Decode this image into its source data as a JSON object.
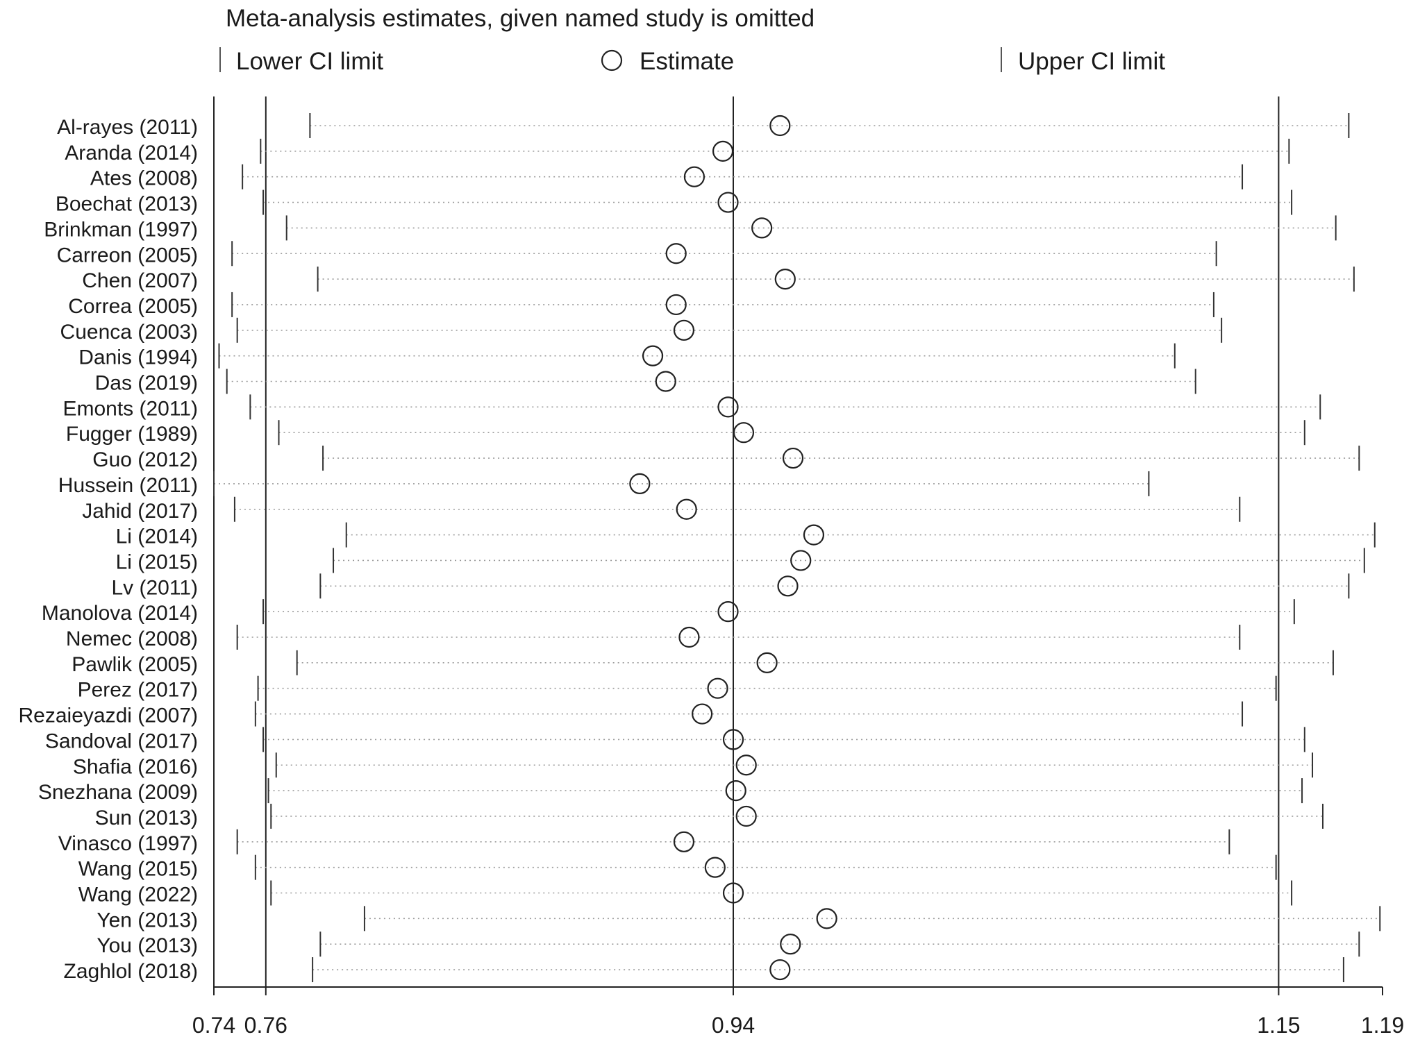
{
  "chart_data": {
    "type": "scatter",
    "title": "Meta-analysis estimates, given named study is omitted",
    "legend": {
      "position": "top",
      "items": [
        {
          "name": "Lower CI limit",
          "marker": "vertical-tick"
        },
        {
          "name": "Estimate",
          "marker": "open-circle"
        },
        {
          "name": "Upper CI limit",
          "marker": "vertical-tick"
        }
      ]
    },
    "x_ticks": [
      "0.74",
      "0.76",
      "0.94",
      "1.15",
      "1.19"
    ],
    "x_tick_values": [
      0.74,
      0.76,
      0.94,
      1.15,
      1.19
    ],
    "xlim": [
      0.74,
      1.19
    ],
    "reference_lines": [
      0.76,
      0.94,
      1.15
    ],
    "xlabel": "",
    "ylabel": "",
    "studies": [
      {
        "name": "Al-rayes (2011)",
        "lower": 0.777,
        "estimate": 0.958,
        "upper": 1.177
      },
      {
        "name": "Aranda (2014)",
        "lower": 0.758,
        "estimate": 0.936,
        "upper": 1.154
      },
      {
        "name": "Ates (2008)",
        "lower": 0.751,
        "estimate": 0.925,
        "upper": 1.136
      },
      {
        "name": "Boechat (2013)",
        "lower": 0.759,
        "estimate": 0.938,
        "upper": 1.155
      },
      {
        "name": "Brinkman (1997)",
        "lower": 0.768,
        "estimate": 0.951,
        "upper": 1.172
      },
      {
        "name": "Carreon (2005)",
        "lower": 0.747,
        "estimate": 0.918,
        "upper": 1.126
      },
      {
        "name": "Chen (2007)",
        "lower": 0.78,
        "estimate": 0.96,
        "upper": 1.179
      },
      {
        "name": "Correa (2005)",
        "lower": 0.747,
        "estimate": 0.918,
        "upper": 1.125
      },
      {
        "name": "Cuenca (2003)",
        "lower": 0.749,
        "estimate": 0.921,
        "upper": 1.128
      },
      {
        "name": "Danis (1994)",
        "lower": 0.742,
        "estimate": 0.909,
        "upper": 1.11
      },
      {
        "name": "Das (2019)",
        "lower": 0.745,
        "estimate": 0.914,
        "upper": 1.118
      },
      {
        "name": "Emonts (2011)",
        "lower": 0.754,
        "estimate": 0.938,
        "upper": 1.166
      },
      {
        "name": "Fugger (1989)",
        "lower": 0.765,
        "estimate": 0.944,
        "upper": 1.16
      },
      {
        "name": "Guo (2012)",
        "lower": 0.782,
        "estimate": 0.963,
        "upper": 1.181
      },
      {
        "name": "Hussein (2011)",
        "lower": 0.74,
        "estimate": 0.904,
        "upper": 1.1
      },
      {
        "name": "Jahid (2017)",
        "lower": 0.748,
        "estimate": 0.922,
        "upper": 1.135
      },
      {
        "name": "Li (2014)",
        "lower": 0.791,
        "estimate": 0.971,
        "upper": 1.187
      },
      {
        "name": "Li (2015)",
        "lower": 0.786,
        "estimate": 0.966,
        "upper": 1.183
      },
      {
        "name": "Lv (2011)",
        "lower": 0.781,
        "estimate": 0.961,
        "upper": 1.177
      },
      {
        "name": "Manolova (2014)",
        "lower": 0.759,
        "estimate": 0.938,
        "upper": 1.156
      },
      {
        "name": "Nemec (2008)",
        "lower": 0.749,
        "estimate": 0.923,
        "upper": 1.135
      },
      {
        "name": "Pawlik (2005)",
        "lower": 0.772,
        "estimate": 0.953,
        "upper": 1.171
      },
      {
        "name": "Perez (2017)",
        "lower": 0.757,
        "estimate": 0.934,
        "upper": 1.149
      },
      {
        "name": "Rezaieyazdi (2007)",
        "lower": 0.756,
        "estimate": 0.928,
        "upper": 1.136
      },
      {
        "name": "Sandoval (2017)",
        "lower": 0.759,
        "estimate": 0.94,
        "upper": 1.16
      },
      {
        "name": "Shafia (2016)",
        "lower": 0.764,
        "estimate": 0.945,
        "upper": 1.163
      },
      {
        "name": "Snezhana (2009)",
        "lower": 0.761,
        "estimate": 0.941,
        "upper": 1.159
      },
      {
        "name": "Sun (2013)",
        "lower": 0.762,
        "estimate": 0.945,
        "upper": 1.167
      },
      {
        "name": "Vinasco (1997)",
        "lower": 0.749,
        "estimate": 0.921,
        "upper": 1.131
      },
      {
        "name": "Wang (2015)",
        "lower": 0.756,
        "estimate": 0.933,
        "upper": 1.149
      },
      {
        "name": "Wang (2022)",
        "lower": 0.762,
        "estimate": 0.94,
        "upper": 1.155
      },
      {
        "name": "Yen (2013)",
        "lower": 0.798,
        "estimate": 0.976,
        "upper": 1.189
      },
      {
        "name": "You (2013)",
        "lower": 0.781,
        "estimate": 0.962,
        "upper": 1.181
      },
      {
        "name": "Zaghlol (2018)",
        "lower": 0.778,
        "estimate": 0.958,
        "upper": 1.175
      }
    ]
  }
}
